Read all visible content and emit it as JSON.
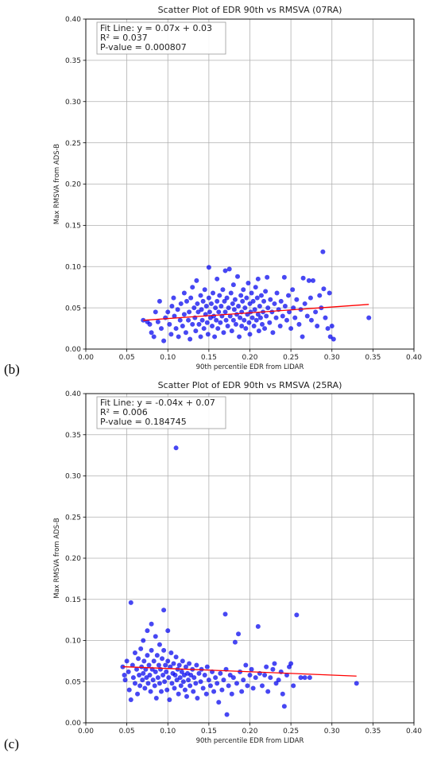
{
  "panel_labels": [
    "(b)",
    "(c)"
  ],
  "chart_data": [
    {
      "type": "scatter",
      "title": "Scatter Plot of EDR 90th vs RMSVA (07RA)",
      "xlabel": "90th percentile EDR from LIDAR",
      "ylabel": "Max RMSVA from ADS-B",
      "xlim": [
        0.0,
        0.4
      ],
      "ylim": [
        0.0,
        0.4
      ],
      "xticks": [
        "0.00",
        "0.05",
        "0.10",
        "0.15",
        "0.20",
        "0.25",
        "0.30",
        "0.35",
        "0.40"
      ],
      "yticks": [
        "0.00",
        "0.05",
        "0.10",
        "0.15",
        "0.20",
        "0.25",
        "0.30",
        "0.35",
        "0.40"
      ],
      "grid": true,
      "point_color": "#0000ee",
      "fit_color": "#ff0000",
      "annotation": [
        "Fit Line: y = 0.07x + 0.03",
        "R² = 0.037",
        "P-value = 0.000807"
      ],
      "fit_line": {
        "slope": 0.07,
        "intercept": 0.03,
        "x_range": [
          0.07,
          0.345
        ]
      },
      "points": [
        [
          0.07,
          0.035
        ],
        [
          0.075,
          0.033
        ],
        [
          0.078,
          0.03
        ],
        [
          0.08,
          0.02
        ],
        [
          0.083,
          0.015
        ],
        [
          0.085,
          0.045
        ],
        [
          0.088,
          0.033
        ],
        [
          0.09,
          0.058
        ],
        [
          0.092,
          0.025
        ],
        [
          0.095,
          0.01
        ],
        [
          0.097,
          0.038
        ],
        [
          0.1,
          0.045
        ],
        [
          0.102,
          0.03
        ],
        [
          0.104,
          0.018
        ],
        [
          0.105,
          0.052
        ],
        [
          0.107,
          0.062
        ],
        [
          0.108,
          0.04
        ],
        [
          0.11,
          0.025
        ],
        [
          0.112,
          0.048
        ],
        [
          0.113,
          0.015
        ],
        [
          0.115,
          0.035
        ],
        [
          0.116,
          0.055
        ],
        [
          0.118,
          0.028
        ],
        [
          0.12,
          0.068
        ],
        [
          0.12,
          0.042
        ],
        [
          0.122,
          0.02
        ],
        [
          0.123,
          0.058
        ],
        [
          0.125,
          0.035
        ],
        [
          0.126,
          0.045
        ],
        [
          0.127,
          0.012
        ],
        [
          0.128,
          0.062
        ],
        [
          0.13,
          0.03
        ],
        [
          0.13,
          0.075
        ],
        [
          0.132,
          0.05
        ],
        [
          0.133,
          0.038
        ],
        [
          0.134,
          0.022
        ],
        [
          0.135,
          0.083
        ],
        [
          0.136,
          0.055
        ],
        [
          0.137,
          0.045
        ],
        [
          0.138,
          0.03
        ],
        [
          0.14,
          0.065
        ],
        [
          0.14,
          0.015
        ],
        [
          0.141,
          0.048
        ],
        [
          0.142,
          0.035
        ],
        [
          0.143,
          0.058
        ],
        [
          0.144,
          0.025
        ],
        [
          0.145,
          0.072
        ],
        [
          0.146,
          0.042
        ],
        [
          0.147,
          0.052
        ],
        [
          0.148,
          0.032
        ],
        [
          0.149,
          0.018
        ],
        [
          0.15,
          0.099
        ],
        [
          0.15,
          0.062
        ],
        [
          0.151,
          0.045
        ],
        [
          0.152,
          0.038
        ],
        [
          0.153,
          0.055
        ],
        [
          0.154,
          0.028
        ],
        [
          0.155,
          0.068
        ],
        [
          0.156,
          0.04
        ],
        [
          0.157,
          0.015
        ],
        [
          0.158,
          0.05
        ],
        [
          0.159,
          0.035
        ],
        [
          0.16,
          0.085
        ],
        [
          0.16,
          0.058
        ],
        [
          0.161,
          0.025
        ],
        [
          0.162,
          0.045
        ],
        [
          0.163,
          0.065
        ],
        [
          0.164,
          0.032
        ],
        [
          0.165,
          0.052
        ],
        [
          0.166,
          0.04
        ],
        [
          0.167,
          0.072
        ],
        [
          0.168,
          0.02
        ],
        [
          0.169,
          0.058
        ],
        [
          0.17,
          0.095
        ],
        [
          0.17,
          0.045
        ],
        [
          0.171,
          0.035
        ],
        [
          0.172,
          0.062
        ],
        [
          0.173,
          0.028
        ],
        [
          0.174,
          0.05
        ],
        [
          0.175,
          0.097
        ],
        [
          0.176,
          0.04
        ],
        [
          0.177,
          0.068
        ],
        [
          0.178,
          0.022
        ],
        [
          0.179,
          0.055
        ],
        [
          0.18,
          0.078
        ],
        [
          0.18,
          0.035
        ],
        [
          0.181,
          0.048
        ],
        [
          0.182,
          0.06
        ],
        [
          0.183,
          0.03
        ],
        [
          0.184,
          0.042
        ],
        [
          0.185,
          0.088
        ],
        [
          0.186,
          0.052
        ],
        [
          0.187,
          0.015
        ],
        [
          0.188,
          0.038
        ],
        [
          0.189,
          0.065
        ],
        [
          0.19,
          0.045
        ],
        [
          0.19,
          0.028
        ],
        [
          0.191,
          0.058
        ],
        [
          0.192,
          0.072
        ],
        [
          0.193,
          0.035
        ],
        [
          0.194,
          0.05
        ],
        [
          0.195,
          0.025
        ],
        [
          0.196,
          0.062
        ],
        [
          0.197,
          0.042
        ],
        [
          0.198,
          0.08
        ],
        [
          0.199,
          0.032
        ],
        [
          0.2,
          0.055
        ],
        [
          0.2,
          0.018
        ],
        [
          0.201,
          0.045
        ],
        [
          0.202,
          0.068
        ],
        [
          0.203,
          0.038
        ],
        [
          0.204,
          0.058
        ],
        [
          0.205,
          0.028
        ],
        [
          0.206,
          0.048
        ],
        [
          0.207,
          0.075
        ],
        [
          0.208,
          0.035
        ],
        [
          0.209,
          0.062
        ],
        [
          0.21,
          0.042
        ],
        [
          0.21,
          0.085
        ],
        [
          0.211,
          0.022
        ],
        [
          0.212,
          0.052
        ],
        [
          0.213,
          0.038
        ],
        [
          0.214,
          0.065
        ],
        [
          0.215,
          0.03
        ],
        [
          0.216,
          0.045
        ],
        [
          0.217,
          0.058
        ],
        [
          0.218,
          0.025
        ],
        [
          0.219,
          0.07
        ],
        [
          0.22,
          0.04
        ],
        [
          0.221,
          0.087
        ],
        [
          0.222,
          0.05
        ],
        [
          0.224,
          0.032
        ],
        [
          0.225,
          0.06
        ],
        [
          0.227,
          0.045
        ],
        [
          0.228,
          0.02
        ],
        [
          0.23,
          0.055
        ],
        [
          0.232,
          0.038
        ],
        [
          0.233,
          0.068
        ],
        [
          0.235,
          0.048
        ],
        [
          0.237,
          0.028
        ],
        [
          0.238,
          0.058
        ],
        [
          0.24,
          0.04
        ],
        [
          0.242,
          0.087
        ],
        [
          0.243,
          0.052
        ],
        [
          0.245,
          0.035
        ],
        [
          0.247,
          0.065
        ],
        [
          0.248,
          0.045
        ],
        [
          0.25,
          0.025
        ],
        [
          0.252,
          0.072
        ],
        [
          0.253,
          0.05
        ],
        [
          0.255,
          0.038
        ],
        [
          0.257,
          0.06
        ],
        [
          0.26,
          0.03
        ],
        [
          0.262,
          0.048
        ],
        [
          0.264,
          0.015
        ],
        [
          0.265,
          0.086
        ],
        [
          0.267,
          0.055
        ],
        [
          0.27,
          0.04
        ],
        [
          0.272,
          0.083
        ],
        [
          0.274,
          0.062
        ],
        [
          0.275,
          0.035
        ],
        [
          0.277,
          0.083
        ],
        [
          0.28,
          0.045
        ],
        [
          0.282,
          0.028
        ],
        [
          0.285,
          0.065
        ],
        [
          0.287,
          0.05
        ],
        [
          0.289,
          0.118
        ],
        [
          0.29,
          0.073
        ],
        [
          0.292,
          0.038
        ],
        [
          0.295,
          0.025
        ],
        [
          0.297,
          0.068
        ],
        [
          0.298,
          0.015
        ],
        [
          0.3,
          0.028
        ],
        [
          0.302,
          0.012
        ],
        [
          0.345,
          0.038
        ]
      ]
    },
    {
      "type": "scatter",
      "title": "Scatter Plot of EDR 90th vs RMSVA (25RA)",
      "xlabel": "90th percentile EDR from LIDAR",
      "ylabel": "Max RMSVA from ADS-B",
      "xlim": [
        0.0,
        0.4
      ],
      "ylim": [
        0.0,
        0.4
      ],
      "xticks": [
        "0.00",
        "0.05",
        "0.10",
        "0.15",
        "0.20",
        "0.25",
        "0.30",
        "0.35",
        "0.40"
      ],
      "yticks": [
        "0.00",
        "0.05",
        "0.10",
        "0.15",
        "0.20",
        "0.25",
        "0.30",
        "0.35",
        "0.40"
      ],
      "grid": true,
      "point_color": "#0000ee",
      "fit_color": "#ff0000",
      "annotation": [
        "Fit Line: y = -0.04x + 0.07",
        "R² = 0.006",
        "P-value = 0.184745"
      ],
      "fit_line": {
        "slope": -0.04,
        "intercept": 0.07,
        "x_range": [
          0.045,
          0.33
        ]
      },
      "points": [
        [
          0.045,
          0.068
        ],
        [
          0.047,
          0.058
        ],
        [
          0.048,
          0.052
        ],
        [
          0.05,
          0.075
        ],
        [
          0.052,
          0.062
        ],
        [
          0.053,
          0.04
        ],
        [
          0.055,
          0.146
        ],
        [
          0.055,
          0.028
        ],
        [
          0.057,
          0.07
        ],
        [
          0.058,
          0.055
        ],
        [
          0.06,
          0.085
        ],
        [
          0.06,
          0.048
        ],
        [
          0.062,
          0.065
        ],
        [
          0.063,
          0.035
        ],
        [
          0.064,
          0.078
        ],
        [
          0.065,
          0.058
        ],
        [
          0.066,
          0.045
        ],
        [
          0.067,
          0.09
        ],
        [
          0.068,
          0.068
        ],
        [
          0.069,
          0.052
        ],
        [
          0.07,
          0.1
        ],
        [
          0.07,
          0.06
        ],
        [
          0.071,
          0.075
        ],
        [
          0.072,
          0.042
        ],
        [
          0.073,
          0.065
        ],
        [
          0.074,
          0.055
        ],
        [
          0.075,
          0.112
        ],
        [
          0.075,
          0.082
        ],
        [
          0.076,
          0.048
        ],
        [
          0.077,
          0.07
        ],
        [
          0.078,
          0.058
        ],
        [
          0.079,
          0.038
        ],
        [
          0.08,
          0.12
        ],
        [
          0.08,
          0.088
        ],
        [
          0.081,
          0.065
        ],
        [
          0.082,
          0.052
        ],
        [
          0.083,
          0.075
        ],
        [
          0.084,
          0.045
        ],
        [
          0.085,
          0.105
        ],
        [
          0.085,
          0.062
        ],
        [
          0.086,
          0.03
        ],
        [
          0.087,
          0.082
        ],
        [
          0.088,
          0.055
        ],
        [
          0.089,
          0.07
        ],
        [
          0.09,
          0.095
        ],
        [
          0.09,
          0.048
        ],
        [
          0.091,
          0.065
        ],
        [
          0.092,
          0.038
        ],
        [
          0.093,
          0.078
        ],
        [
          0.094,
          0.058
        ],
        [
          0.095,
          0.137
        ],
        [
          0.095,
          0.088
        ],
        [
          0.096,
          0.05
        ],
        [
          0.097,
          0.07
        ],
        [
          0.098,
          0.062
        ],
        [
          0.099,
          0.04
        ],
        [
          0.1,
          0.112
        ],
        [
          0.1,
          0.075
        ],
        [
          0.101,
          0.055
        ],
        [
          0.102,
          0.028
        ],
        [
          0.103,
          0.068
        ],
        [
          0.104,
          0.085
        ],
        [
          0.105,
          0.048
        ],
        [
          0.106,
          0.06
        ],
        [
          0.107,
          0.072
        ],
        [
          0.108,
          0.042
        ],
        [
          0.109,
          0.058
        ],
        [
          0.11,
          0.334
        ],
        [
          0.11,
          0.08
        ],
        [
          0.111,
          0.052
        ],
        [
          0.112,
          0.065
        ],
        [
          0.113,
          0.035
        ],
        [
          0.114,
          0.07
        ],
        [
          0.115,
          0.055
        ],
        [
          0.116,
          0.045
        ],
        [
          0.117,
          0.062
        ],
        [
          0.118,
          0.075
        ],
        [
          0.119,
          0.05
        ],
        [
          0.12,
          0.058
        ],
        [
          0.121,
          0.04
        ],
        [
          0.122,
          0.068
        ],
        [
          0.123,
          0.032
        ],
        [
          0.124,
          0.06
        ],
        [
          0.125,
          0.052
        ],
        [
          0.126,
          0.072
        ],
        [
          0.127,
          0.045
        ],
        [
          0.128,
          0.058
        ],
        [
          0.13,
          0.065
        ],
        [
          0.131,
          0.038
        ],
        [
          0.132,
          0.055
        ],
        [
          0.134,
          0.048
        ],
        [
          0.135,
          0.07
        ],
        [
          0.136,
          0.03
        ],
        [
          0.138,
          0.06
        ],
        [
          0.14,
          0.05
        ],
        [
          0.141,
          0.065
        ],
        [
          0.143,
          0.042
        ],
        [
          0.145,
          0.058
        ],
        [
          0.147,
          0.035
        ],
        [
          0.148,
          0.068
        ],
        [
          0.15,
          0.052
        ],
        [
          0.152,
          0.045
        ],
        [
          0.154,
          0.062
        ],
        [
          0.156,
          0.038
        ],
        [
          0.158,
          0.055
        ],
        [
          0.16,
          0.048
        ],
        [
          0.162,
          0.025
        ],
        [
          0.164,
          0.06
        ],
        [
          0.166,
          0.04
        ],
        [
          0.168,
          0.052
        ],
        [
          0.17,
          0.132
        ],
        [
          0.171,
          0.065
        ],
        [
          0.172,
          0.01
        ],
        [
          0.174,
          0.045
        ],
        [
          0.176,
          0.058
        ],
        [
          0.178,
          0.035
        ],
        [
          0.18,
          0.055
        ],
        [
          0.182,
          0.098
        ],
        [
          0.184,
          0.048
        ],
        [
          0.186,
          0.108
        ],
        [
          0.188,
          0.062
        ],
        [
          0.19,
          0.038
        ],
        [
          0.192,
          0.052
        ],
        [
          0.195,
          0.07
        ],
        [
          0.197,
          0.045
        ],
        [
          0.2,
          0.058
        ],
        [
          0.202,
          0.065
        ],
        [
          0.204,
          0.042
        ],
        [
          0.207,
          0.055
        ],
        [
          0.21,
          0.117
        ],
        [
          0.212,
          0.06
        ],
        [
          0.215,
          0.045
        ],
        [
          0.218,
          0.058
        ],
        [
          0.22,
          0.068
        ],
        [
          0.222,
          0.038
        ],
        [
          0.225,
          0.055
        ],
        [
          0.228,
          0.065
        ],
        [
          0.23,
          0.072
        ],
        [
          0.232,
          0.048
        ],
        [
          0.235,
          0.052
        ],
        [
          0.238,
          0.062
        ],
        [
          0.24,
          0.035
        ],
        [
          0.242,
          0.02
        ],
        [
          0.245,
          0.058
        ],
        [
          0.248,
          0.068
        ],
        [
          0.25,
          0.072
        ],
        [
          0.253,
          0.045
        ],
        [
          0.257,
          0.131
        ],
        [
          0.262,
          0.055
        ],
        [
          0.267,
          0.055
        ],
        [
          0.273,
          0.055
        ],
        [
          0.33,
          0.048
        ]
      ]
    }
  ]
}
